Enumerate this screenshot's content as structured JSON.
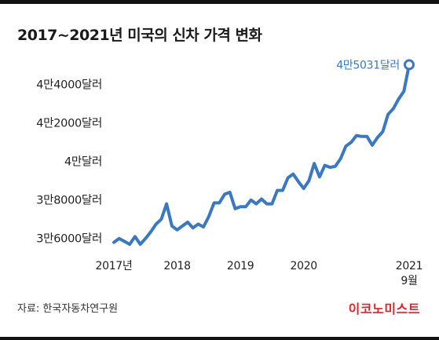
{
  "title": "2017~2021년 미국의 신차 가격 변화",
  "source": "자료: 한국자동차연구원",
  "brand": "이코노미스트",
  "colors": {
    "line": "#3b78c2",
    "text": "#222222",
    "brand": "#d8262e"
  },
  "chart_data": {
    "type": "line",
    "title": "2017~2021년 미국의 신차 가격 변화",
    "xlabel": "",
    "ylabel": "",
    "grid": false,
    "legend": "none",
    "ylim": [
      35500,
      45700
    ],
    "y_ticks": [
      {
        "value": 36000,
        "label": "3만6000달러"
      },
      {
        "value": 38000,
        "label": "3만8000달러"
      },
      {
        "value": 40000,
        "label": "4만달러"
      },
      {
        "value": 42000,
        "label": "4만2000달러"
      },
      {
        "value": 44000,
        "label": "4만4000달러"
      }
    ],
    "x_ticks": [
      {
        "date": "2017-01",
        "label": "2017년"
      },
      {
        "date": "2018-01",
        "label": "2018"
      },
      {
        "date": "2019-01",
        "label": "2019"
      },
      {
        "date": "2020-01",
        "label": "2020"
      },
      {
        "date": "2021-09",
        "label": "2021",
        "sublabel": "9월"
      }
    ],
    "annotation": {
      "date": "2021-09",
      "value": 45031,
      "label": "4만5031달러"
    },
    "series": [
      {
        "x": [
          "2017-01",
          "2017-02",
          "2017-03",
          "2017-04",
          "2017-05",
          "2017-06",
          "2017-07",
          "2017-08",
          "2017-09",
          "2017-10",
          "2017-11",
          "2017-12",
          "2018-01",
          "2018-02",
          "2018-03",
          "2018-04",
          "2018-05",
          "2018-06",
          "2018-07",
          "2018-08",
          "2018-09",
          "2018-10",
          "2018-11",
          "2018-12",
          "2019-01",
          "2019-02",
          "2019-03",
          "2019-04",
          "2019-05",
          "2019-06",
          "2019-07",
          "2019-08",
          "2019-09",
          "2019-10",
          "2019-11",
          "2019-12",
          "2020-01",
          "2020-02",
          "2020-03",
          "2020-04",
          "2020-05",
          "2020-06",
          "2020-07",
          "2020-08",
          "2020-09",
          "2020-10",
          "2020-11",
          "2020-12",
          "2021-01",
          "2021-02",
          "2021-03",
          "2021-04",
          "2021-05",
          "2021-06",
          "2021-07",
          "2021-08",
          "2021-09"
        ],
        "values": [
          35800,
          36000,
          35850,
          35700,
          36100,
          35700,
          36000,
          36350,
          36750,
          37000,
          37800,
          36650,
          36450,
          36650,
          36850,
          36550,
          36750,
          36600,
          37150,
          37850,
          37850,
          38300,
          38400,
          37550,
          37650,
          37650,
          38000,
          37800,
          38050,
          37800,
          37800,
          38500,
          38500,
          39150,
          39350,
          38950,
          38600,
          39000,
          39900,
          39200,
          39800,
          39700,
          39750,
          40150,
          40800,
          41000,
          41350,
          41300,
          41300,
          40850,
          41250,
          41550,
          42450,
          42750,
          43250,
          43650,
          45031
        ]
      }
    ]
  }
}
